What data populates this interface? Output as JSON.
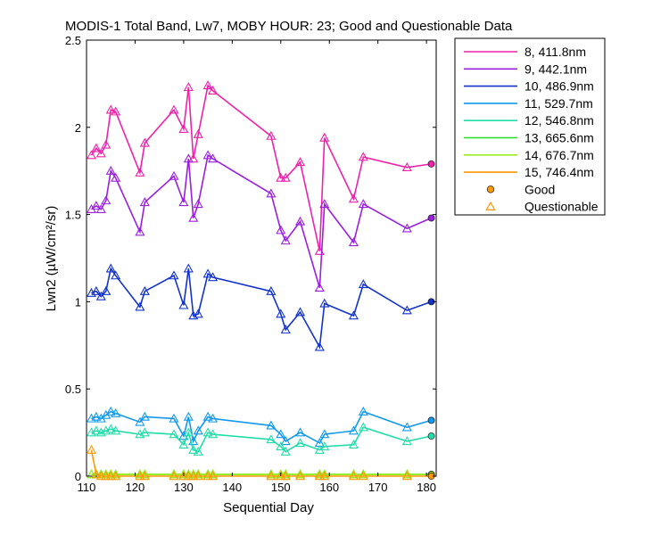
{
  "chart_data": {
    "type": "line",
    "title": "MODIS-1 Total Band, Lw7, MOBY HOUR: 23;  Good and Questionable Data",
    "xlabel": "Sequential Day",
    "ylabel": "Lwn2 (µW/cm²/sr)",
    "xlim": [
      110,
      182
    ],
    "ylim": [
      0,
      2.5
    ],
    "xticks": [
      110,
      120,
      130,
      140,
      150,
      160,
      170,
      180
    ],
    "yticks": [
      0,
      0.5,
      1,
      1.5,
      2,
      2.5
    ],
    "ytick_labels": [
      "0",
      "0.5",
      "1",
      "1.5",
      "2",
      "2.5"
    ],
    "x": [
      111,
      112,
      113,
      114,
      115,
      116,
      121,
      122,
      128,
      130,
      131,
      132,
      133,
      135,
      136,
      148,
      150,
      151,
      154,
      158,
      159,
      165,
      167,
      176,
      181
    ],
    "series": [
      {
        "name": "8, 411.8nm",
        "color": "#ee22aa",
        "values": [
          1.84,
          1.88,
          1.85,
          1.9,
          2.1,
          2.09,
          1.74,
          1.91,
          2.1,
          1.99,
          2.23,
          1.82,
          1.96,
          2.24,
          2.21,
          1.95,
          1.71,
          1.71,
          1.8,
          1.29,
          1.94,
          1.59,
          1.83,
          1.77,
          1.79
        ]
      },
      {
        "name": "9, 442.1nm",
        "color": "#9b1fe0",
        "values": [
          1.53,
          1.55,
          1.53,
          1.58,
          1.75,
          1.71,
          1.4,
          1.57,
          1.72,
          1.57,
          1.82,
          1.48,
          1.56,
          1.84,
          1.82,
          1.62,
          1.41,
          1.35,
          1.46,
          1.08,
          1.56,
          1.34,
          1.56,
          1.42,
          1.48
        ]
      },
      {
        "name": "10, 486.9nm",
        "color": "#1133cc",
        "values": [
          1.05,
          1.06,
          1.03,
          1.06,
          1.19,
          1.15,
          0.97,
          1.06,
          1.15,
          0.98,
          1.19,
          0.92,
          0.93,
          1.16,
          1.14,
          1.06,
          0.93,
          0.84,
          0.94,
          0.74,
          0.99,
          0.92,
          1.1,
          0.95,
          1.0
        ]
      },
      {
        "name": "11, 529.7nm",
        "color": "#1199ee",
        "values": [
          0.33,
          0.34,
          0.33,
          0.35,
          0.37,
          0.36,
          0.31,
          0.34,
          0.33,
          0.23,
          0.34,
          0.2,
          0.26,
          0.34,
          0.33,
          0.29,
          0.24,
          0.2,
          0.25,
          0.19,
          0.24,
          0.26,
          0.37,
          0.28,
          0.32
        ]
      },
      {
        "name": "12, 546.8nm",
        "color": "#22ddaa",
        "values": [
          0.25,
          0.26,
          0.25,
          0.26,
          0.27,
          0.26,
          0.24,
          0.25,
          0.24,
          0.18,
          0.25,
          0.15,
          0.14,
          0.25,
          0.24,
          0.21,
          0.17,
          0.14,
          0.19,
          0.15,
          0.17,
          0.18,
          0.28,
          0.2,
          0.23
        ]
      },
      {
        "name": "13, 665.6nm",
        "color": "#22dd22",
        "values": [
          0.01,
          0.01,
          0.01,
          0.01,
          0.01,
          0.01,
          0.01,
          0.01,
          0.01,
          0.01,
          0.01,
          0.01,
          0.01,
          0.01,
          0.01,
          0.01,
          0.01,
          0.01,
          0.01,
          0.01,
          0.01,
          0.01,
          0.01,
          0.01,
          0.01
        ]
      },
      {
        "name": "14, 676.7nm",
        "color": "#99ee22",
        "values": [
          0.01,
          0.01,
          0.01,
          0.01,
          0.01,
          0.01,
          0.01,
          0.01,
          0.01,
          0.01,
          0.01,
          0.01,
          0.01,
          0.01,
          0.01,
          0.01,
          0.01,
          0.01,
          0.01,
          0.01,
          0.01,
          0.01,
          0.01,
          0.01,
          0.01
        ]
      },
      {
        "name": "15, 746.4nm",
        "color": "#ff9900",
        "values": [
          0.15,
          0.01,
          0.0,
          0.0,
          0.0,
          0.0,
          0.0,
          0.0,
          0.0,
          0.0,
          0.0,
          0.0,
          0.0,
          0.0,
          0.0,
          0.0,
          0.0,
          0.0,
          0.0,
          0.0,
          0.0,
          0.0,
          0.0,
          0.0,
          0.0
        ]
      }
    ],
    "good_x": [
      181
    ],
    "markers": {
      "good": {
        "label": "Good",
        "shape": "circle",
        "color": "#ff9900"
      },
      "questionable": {
        "label": "Questionable",
        "shape": "triangle",
        "color": "#ff9900"
      }
    },
    "legend": "top-right, outside plot",
    "grid": false
  }
}
